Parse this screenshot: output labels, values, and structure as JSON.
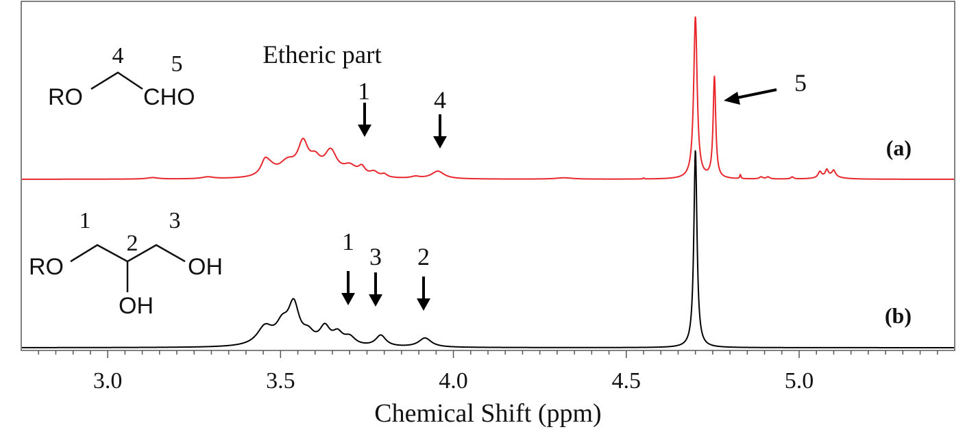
{
  "chart_data": {
    "type": "line",
    "title": "",
    "xlabel": "Chemical Shift (ppm)",
    "ylabel": "",
    "xlim": [
      2.75,
      5.45
    ],
    "x_ticks": [
      {
        "value": 3.0,
        "label": "3.0"
      },
      {
        "value": 3.5,
        "label": "3.5"
      },
      {
        "value": 4.0,
        "label": "4.0"
      },
      {
        "value": 4.5,
        "label": "4.5"
      },
      {
        "value": 5.0,
        "label": "5.0"
      }
    ],
    "grid": false,
    "series": [
      {
        "name": "(a)",
        "label": "(a)",
        "color": "#e8262b",
        "peaks": [
          {
            "x": 3.13,
            "h": 0.014,
            "w": 0.02
          },
          {
            "x": 3.29,
            "h": 0.018,
            "w": 0.02
          },
          {
            "x": 3.455,
            "h": 0.13,
            "w": 0.014
          },
          {
            "x": 3.47,
            "h": 0.07,
            "w": 0.02
          },
          {
            "x": 3.52,
            "h": 0.14,
            "w": 0.03
          },
          {
            "x": 3.565,
            "h": 0.3,
            "w": 0.018
          },
          {
            "x": 3.6,
            "h": 0.14,
            "w": 0.02
          },
          {
            "x": 3.645,
            "h": 0.24,
            "w": 0.022
          },
          {
            "x": 3.7,
            "h": 0.1,
            "w": 0.025
          },
          {
            "x": 3.735,
            "h": 0.08,
            "w": 0.012
          },
          {
            "x": 3.77,
            "h": 0.05,
            "w": 0.015
          },
          {
            "x": 3.8,
            "h": 0.03,
            "w": 0.01
          },
          {
            "x": 3.89,
            "h": 0.018,
            "w": 0.015
          },
          {
            "x": 3.955,
            "h": 0.075,
            "w": 0.022
          },
          {
            "x": 4.32,
            "h": 0.013,
            "w": 0.03
          },
          {
            "x": 4.55,
            "h": 0.01,
            "w": 0.002
          },
          {
            "x": 4.7,
            "h": 1.6,
            "w": 0.006
          },
          {
            "x": 4.755,
            "h": 1.0,
            "w": 0.0045
          },
          {
            "x": 4.83,
            "h": 0.04,
            "w": 0.002
          },
          {
            "x": 4.89,
            "h": 0.02,
            "w": 0.006
          },
          {
            "x": 4.91,
            "h": 0.02,
            "w": 0.006
          },
          {
            "x": 4.98,
            "h": 0.02,
            "w": 0.005
          },
          {
            "x": 5.06,
            "h": 0.06,
            "w": 0.006
          },
          {
            "x": 5.08,
            "h": 0.065,
            "w": 0.005
          },
          {
            "x": 5.1,
            "h": 0.06,
            "w": 0.006
          },
          {
            "x": 5.09,
            "h": 0.03,
            "w": 0.03
          }
        ]
      },
      {
        "name": "(b)",
        "label": "(b)",
        "color": "#000000",
        "peaks": [
          {
            "x": 3.455,
            "h": 0.18,
            "w": 0.028
          },
          {
            "x": 3.505,
            "h": 0.18,
            "w": 0.022
          },
          {
            "x": 3.538,
            "h": 0.38,
            "w": 0.019
          },
          {
            "x": 3.58,
            "h": 0.1,
            "w": 0.02
          },
          {
            "x": 3.628,
            "h": 0.17,
            "w": 0.018
          },
          {
            "x": 3.665,
            "h": 0.11,
            "w": 0.018
          },
          {
            "x": 3.7,
            "h": 0.08,
            "w": 0.02
          },
          {
            "x": 3.79,
            "h": 0.11,
            "w": 0.018
          },
          {
            "x": 3.918,
            "h": 0.09,
            "w": 0.022
          },
          {
            "x": 4.7,
            "h": 1.95,
            "w": 0.0055
          }
        ]
      }
    ],
    "annotations": [
      {
        "text": "Etheric part"
      },
      {
        "text": "1",
        "series": "(a)",
        "x": 3.735
      },
      {
        "text": "4",
        "series": "(a)",
        "x": 3.955
      },
      {
        "text": "5",
        "series": "(a)",
        "x": 4.755
      },
      {
        "text": "1",
        "series": "(b)",
        "x": 3.69
      },
      {
        "text": "3",
        "series": "(b)",
        "x": 3.79
      },
      {
        "text": "2",
        "series": "(b)",
        "x": 3.918
      }
    ]
  },
  "structure_a": {
    "site_4": "4",
    "site_5": "5",
    "ro": "RO",
    "cho": "CHO"
  },
  "structure_b": {
    "site_1": "1",
    "site_2": "2",
    "site_3": "3",
    "ro": "RO",
    "oh_right": "OH",
    "oh_bottom": "OH"
  }
}
